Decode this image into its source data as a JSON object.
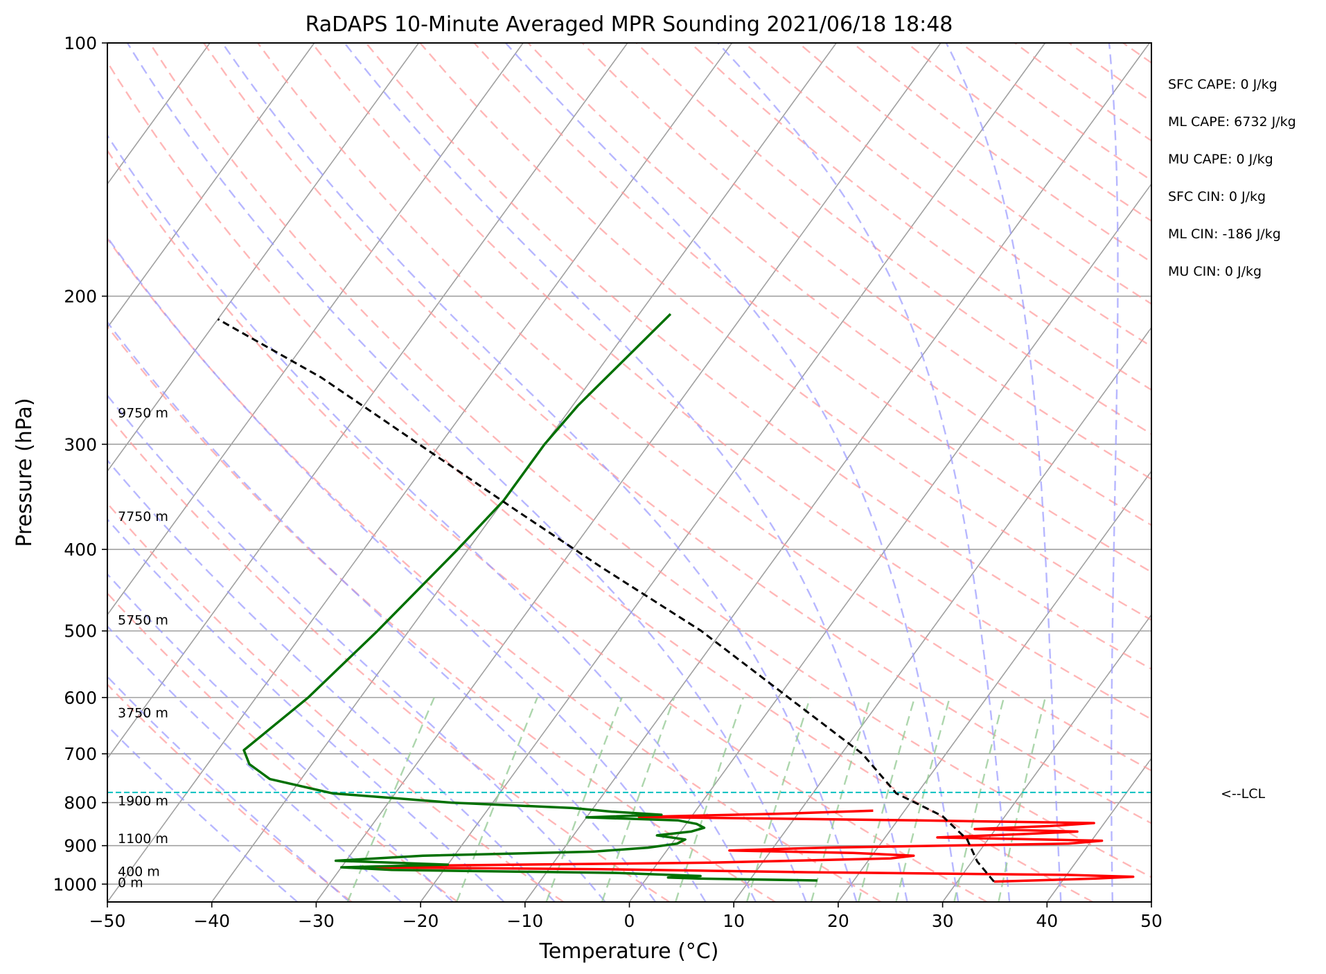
{
  "chart_data": {
    "type": "line",
    "title": "RaDAPS 10-Minute Averaged MPR Sounding 2021/06/18 18:48",
    "xlabel": "Temperature (°C)",
    "ylabel": "Pressure (hPa)",
    "xlim": [
      -50,
      50
    ],
    "ylim": [
      1050,
      100
    ],
    "y_scale": "log",
    "skew": true,
    "x_ticks": [
      -50,
      -40,
      -30,
      -20,
      -10,
      0,
      10,
      20,
      30,
      40,
      50
    ],
    "x_tick_labels": [
      "−50",
      "−40",
      "−30",
      "−20",
      "−10",
      "0",
      "10",
      "20",
      "30",
      "40",
      "50"
    ],
    "y_ticks": [
      100,
      200,
      300,
      400,
      500,
      600,
      700,
      800,
      900,
      1000
    ],
    "y_tick_labels": [
      "100",
      "200",
      "300",
      "400",
      "500",
      "600",
      "700",
      "800",
      "900",
      "1000"
    ],
    "grid": true,
    "colors": {
      "temperature": "#ff0000",
      "dewpoint": "#007000",
      "parcel": "#000000",
      "isotherm": "#a0a0a0",
      "dry_adiabat": "#ff9999",
      "moist_adiabat": "#9999ff",
      "mixing_ratio": "#99cc99",
      "lcl_line": "#00c0c0"
    },
    "series": [
      {
        "key": "temperature",
        "pressure_hpa": [
          993,
          985,
          980,
          975,
          968,
          960,
          955,
          950,
          943,
          932,
          925,
          918,
          912,
          905,
          895,
          888,
          880,
          872,
          866,
          860,
          853,
          846,
          840,
          832,
          825,
          818
        ],
        "temp_c": [
          33.5,
          43,
          46.5,
          40,
          15,
          -5,
          -28,
          -20,
          5,
          22,
          24,
          18,
          6,
          15,
          38,
          41,
          25,
          33,
          38,
          28,
          35,
          39,
          22,
          -5,
          8,
          17
        ]
      },
      {
        "key": "dewpoint",
        "pressure_hpa": [
          990,
          985,
          982,
          978,
          970,
          962,
          955,
          948,
          938,
          925,
          915,
          905,
          895,
          885,
          875,
          866,
          857,
          848,
          840,
          833,
          827,
          820,
          812,
          800,
          780,
          750,
          720,
          693,
          600,
          500,
          400,
          350,
          300,
          270,
          210
        ],
        "dewpoint_c": [
          16.5,
          5,
          2,
          5,
          -3,
          -25,
          -30,
          -20,
          -31,
          -23,
          -7,
          -2,
          0.5,
          1,
          -2,
          1,
          2,
          1,
          -1,
          -10,
          -3,
          -8,
          -12,
          -24,
          -36,
          -43,
          -46,
          -47.5,
          -45,
          -43,
          -41,
          -40,
          -40,
          -39.5,
          -37
        ]
      },
      {
        "key": "parcel",
        "pressure_hpa": [
          993,
          940,
          885,
          830,
          780,
          700,
          600,
          500,
          420,
          360,
          300,
          250,
          213
        ],
        "temp_c": [
          33.5,
          30.5,
          28,
          24,
          18,
          12,
          1,
          -12,
          -26,
          -38,
          -52,
          -66,
          -80
        ]
      }
    ],
    "lcl_pressure_hpa": 778,
    "lcl_label": "<--LCL",
    "height_labels": [
      {
        "text": "9750 m",
        "pressure_hpa": 275
      },
      {
        "text": "7750 m",
        "pressure_hpa": 365
      },
      {
        "text": "5750 m",
        "pressure_hpa": 485
      },
      {
        "text": "3750 m",
        "pressure_hpa": 625
      },
      {
        "text": "1900 m",
        "pressure_hpa": 795
      },
      {
        "text": "1100 m",
        "pressure_hpa": 882
      },
      {
        "text": "400 m",
        "pressure_hpa": 965
      },
      {
        "text": "0 m",
        "pressure_hpa": 995
      }
    ],
    "stats": [
      "SFC CAPE: 0 J/kg",
      "ML CAPE: 6732 J/kg",
      "MU CAPE: 0 J/kg",
      "SFC CIN: 0 J/kg",
      "ML CIN: -186 J/kg",
      "MU CIN: 0 J/kg"
    ]
  }
}
